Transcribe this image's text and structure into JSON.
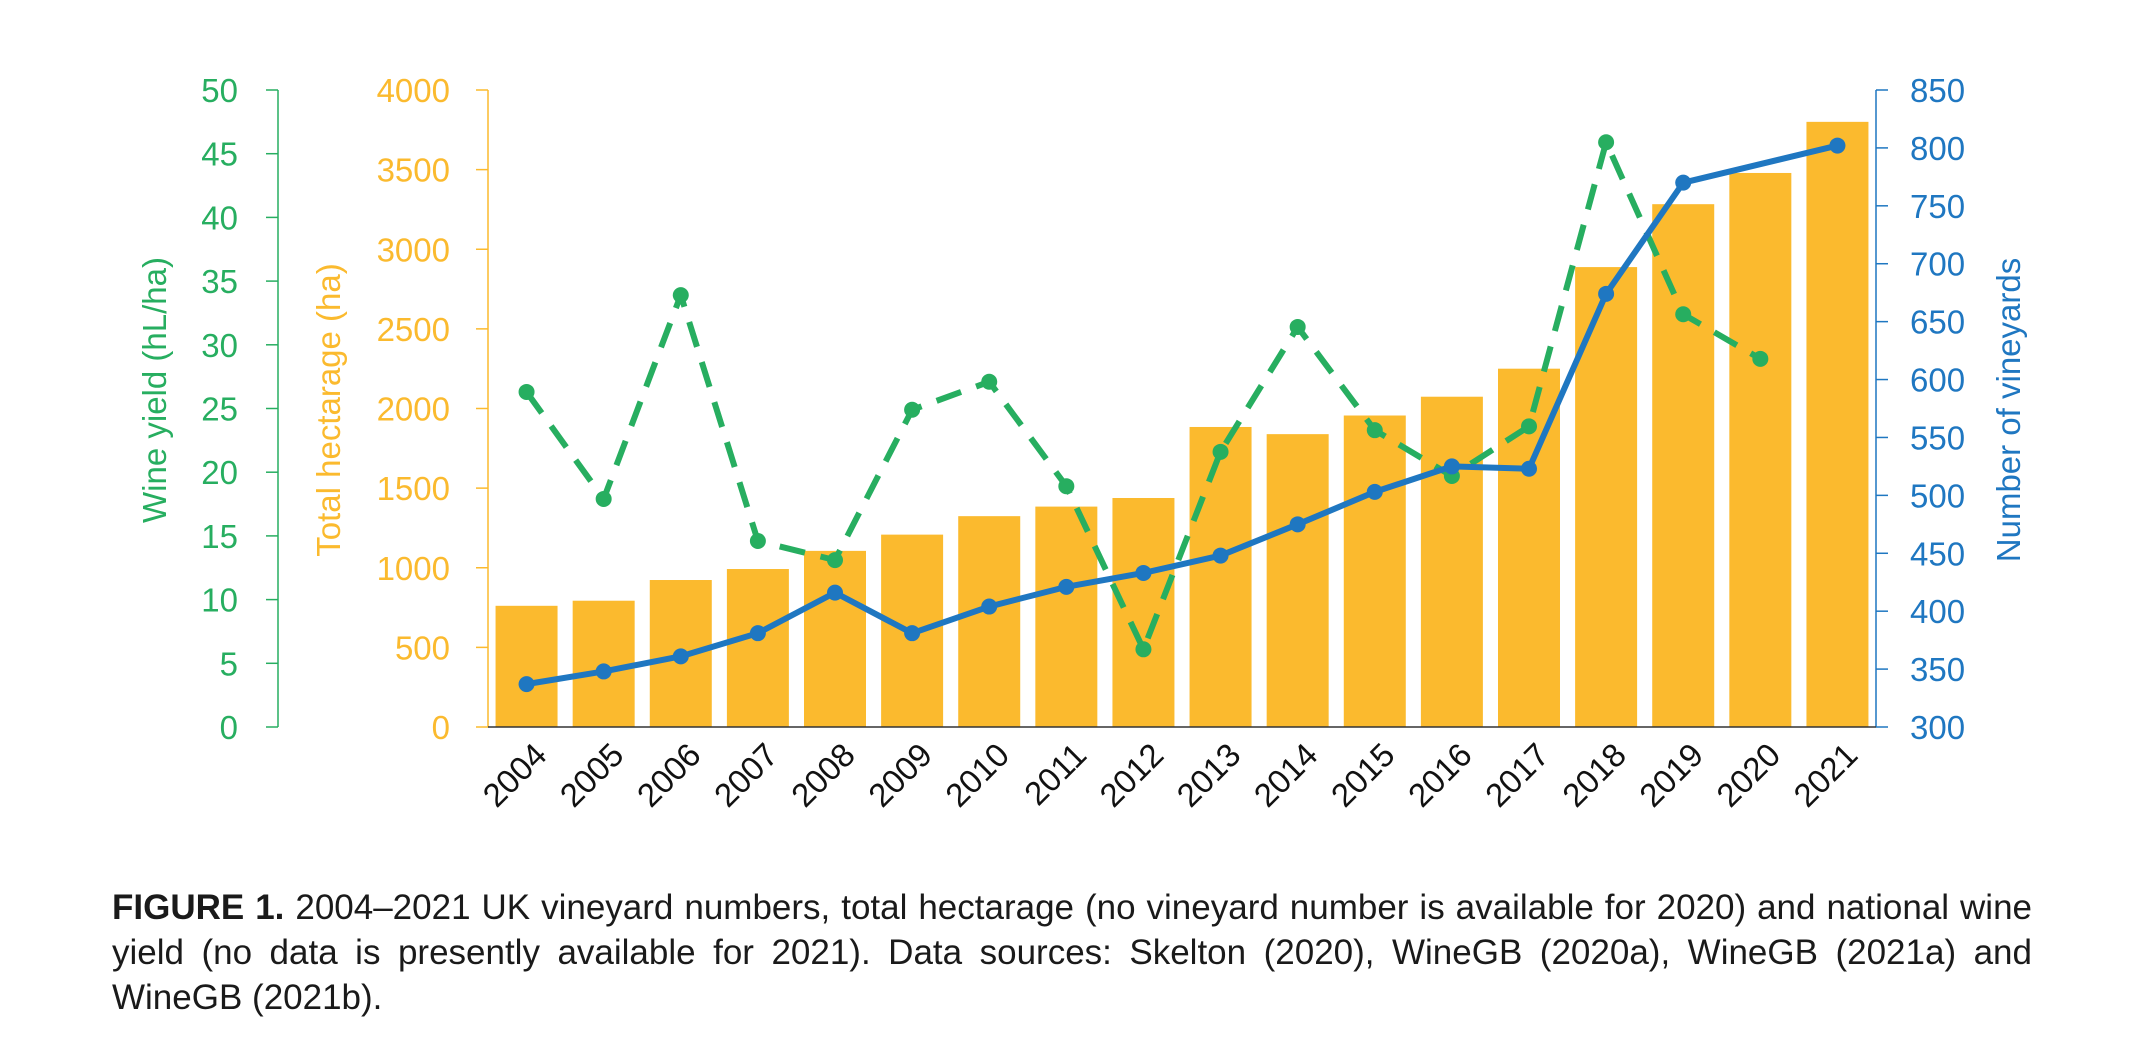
{
  "chart_data": {
    "type": "bar+line",
    "categories": [
      "2004",
      "2005",
      "2006",
      "2007",
      "2008",
      "2009",
      "2010",
      "2011",
      "2012",
      "2013",
      "2014",
      "2015",
      "2016",
      "2017",
      "2018",
      "2019",
      "2020",
      "2021"
    ],
    "series": [
      {
        "name": "Total hectarage (ha)",
        "kind": "bar",
        "axis": "hectarage",
        "color": "#FBBA2E",
        "values": [
          761,
          793,
          923,
          992,
          1106,
          1208,
          1324,
          1384,
          1438,
          1884,
          1839,
          1956,
          2074,
          2250,
          2888,
          3283,
          3479,
          3800
        ]
      },
      {
        "name": "Number of vineyards",
        "kind": "line",
        "axis": "vineyards",
        "color": "#1F77C1",
        "values": [
          337,
          348,
          361,
          381,
          416,
          381,
          404,
          421,
          433,
          448,
          475,
          503,
          525,
          523,
          674,
          770,
          null,
          802
        ]
      },
      {
        "name": "Wine yield (hL/ha)",
        "kind": "dashed-line",
        "axis": "yield",
        "color": "#27AE60",
        "values": [
          26.3,
          17.9,
          33.9,
          14.6,
          13.1,
          24.9,
          27.1,
          18.9,
          6.1,
          21.6,
          31.4,
          23.3,
          19.7,
          23.6,
          45.9,
          32.4,
          null,
          null
        ],
        "trailing": {
          "x": "2020",
          "y": 28.9
        }
      }
    ],
    "axes": {
      "yield": {
        "label": "Wine yield (hL/ha)",
        "min": 0,
        "max": 50,
        "ticks": [
          "0",
          "5",
          "10",
          "15",
          "20",
          "25",
          "30",
          "35",
          "40",
          "45",
          "50"
        ],
        "color": "#27AE60"
      },
      "hectarage": {
        "label": "Total hectarage (ha)",
        "min": 0,
        "max": 4000,
        "ticks": [
          "0",
          "500",
          "1000",
          "1500",
          "2000",
          "2500",
          "3000",
          "3500",
          "4000"
        ],
        "color": "#FBBA2E"
      },
      "vineyards": {
        "label": "Number of vineyards",
        "min": 300,
        "max": 850,
        "ticks": [
          "300",
          "350",
          "400",
          "450",
          "500",
          "550",
          "600",
          "650",
          "700",
          "750",
          "800",
          "850"
        ],
        "color": "#1F77C1"
      }
    },
    "caption_lead": "FIGURE 1.",
    "caption_text": " 2004–2021 UK vineyard numbers, total hectarage (no vineyard number is available for 2020) and national wine yield (no data is presently available for 2021). Data sources: Skelton (2020), WineGB (2020a), WineGB (2021a) and WineGB (2021b)."
  }
}
